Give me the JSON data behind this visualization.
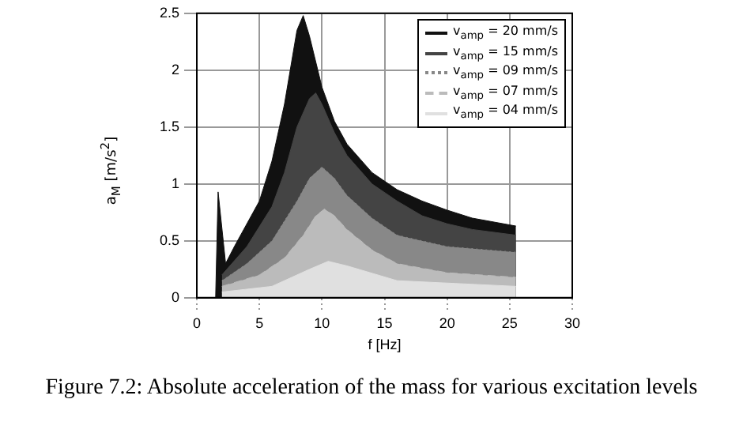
{
  "chart_data": {
    "type": "area",
    "xlabel": "f [Hz]",
    "ylabel": "a$_{M}$ [m/s$^{2}$]",
    "annotations": [
      "Figure 7.2: Absolute acceleration of the mass for various excitation levels"
    ],
    "xlim": [
      0,
      30
    ],
    "ylim": [
      0,
      2.5
    ],
    "xticks": [
      0,
      5,
      10,
      15,
      20,
      25,
      30
    ],
    "yticks": [
      0,
      0.5,
      1,
      1.5,
      2,
      2.5
    ],
    "grid": true,
    "legend": "top right",
    "marker": "none",
    "series": [
      {
        "name": "v$_{amp}$ = 20 mm/s",
        "color": "#111111",
        "line_style": "solid",
        "x": [
          1.5,
          1.7,
          2.3,
          3,
          4,
          5,
          6,
          7,
          8,
          8.5,
          9,
          10,
          11,
          12,
          14,
          16,
          18,
          20,
          22,
          24,
          25.5
        ],
        "values": [
          0,
          0.93,
          0.3,
          0.45,
          0.65,
          0.85,
          1.2,
          1.7,
          2.35,
          2.48,
          2.3,
          1.85,
          1.55,
          1.35,
          1.1,
          0.95,
          0.85,
          0.77,
          0.7,
          0.66,
          0.63
        ]
      },
      {
        "name": "v$_{amp}$ = 15 mm/s",
        "color": "#444444",
        "line_style": "solid",
        "x": [
          2,
          4,
          6,
          7,
          8,
          9,
          9.5,
          10,
          11,
          12,
          14,
          16,
          18,
          20,
          22,
          25.5
        ],
        "values": [
          0.2,
          0.45,
          0.8,
          1.1,
          1.5,
          1.75,
          1.8,
          1.7,
          1.45,
          1.25,
          1,
          0.85,
          0.72,
          0.65,
          0.6,
          0.55
        ]
      },
      {
        "name": "v$_{amp}$ = 09 mm/s",
        "color": "#888888",
        "line_style": "dotted",
        "x": [
          2,
          4,
          6,
          8,
          9,
          10,
          11,
          12,
          14,
          16,
          20,
          25.5
        ],
        "values": [
          0.15,
          0.3,
          0.5,
          0.85,
          1.05,
          1.15,
          1.05,
          0.9,
          0.7,
          0.55,
          0.45,
          0.4
        ]
      },
      {
        "name": "v$_{amp}$ = 07 mm/s",
        "color": "#bbbbbb",
        "line_style": "dashed",
        "x": [
          2,
          5,
          7,
          8.5,
          9.5,
          10.2,
          11,
          12,
          14,
          16,
          20,
          25.5
        ],
        "values": [
          0.1,
          0.2,
          0.35,
          0.55,
          0.72,
          0.78,
          0.72,
          0.6,
          0.42,
          0.3,
          0.22,
          0.18
        ]
      },
      {
        "name": "v$_{amp}$ = 04 mm/s",
        "color": "#e0e0e0",
        "line_style": "solid",
        "x": [
          2,
          6,
          9,
          10.5,
          12,
          16,
          25.5
        ],
        "values": [
          0.05,
          0.1,
          0.25,
          0.32,
          0.28,
          0.15,
          0.1
        ]
      }
    ]
  }
}
